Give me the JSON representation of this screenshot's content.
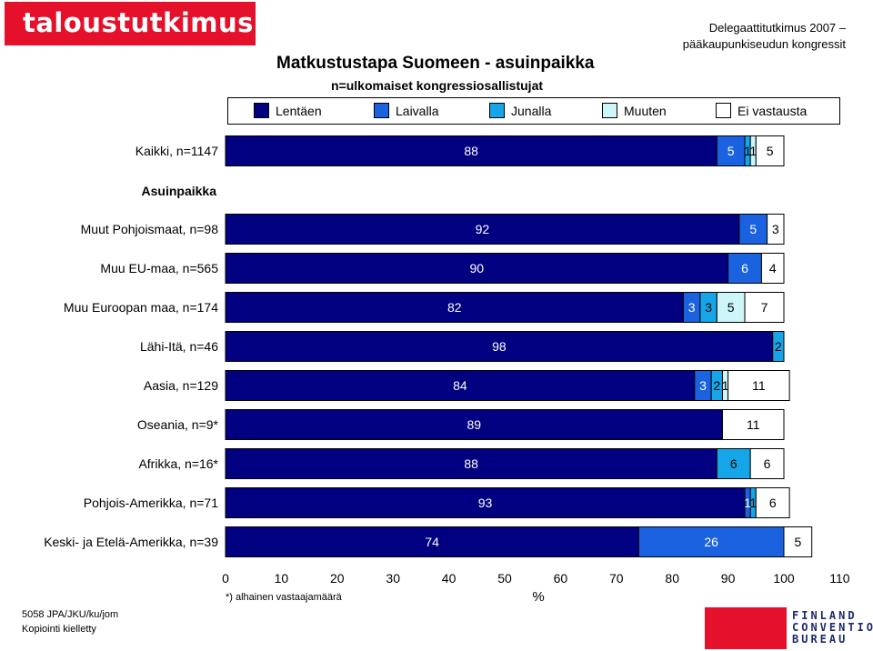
{
  "brand": {
    "logo_text": "taloustutkimus oy"
  },
  "header": {
    "survey_line1": "Delegaattitutkimus 2007 –",
    "survey_line2": "pääkaupunkiseudun kongressit"
  },
  "footer": {
    "code": "5058 JPA/JKU/ku/jom",
    "copyright": "Kopiointi kielletty",
    "badge": "FINLAND CONVENTION BUREAU",
    "badge_lines": [
      "FINLAND",
      "CONVENTION",
      "BUREAU"
    ]
  },
  "colors": [
    "#000080",
    "#1a62e0",
    "#16a6e8",
    "#ccf6f8",
    "#ffffff"
  ],
  "chart_data": {
    "type": "bar",
    "orientation": "horizontal",
    "stacked": true,
    "title": "Matkustustapa Suomeen - asuinpaikka",
    "subtitle": "n=ulkomaiset kongressiosallistujat",
    "xlabel": "%",
    "xlim": [
      0,
      110
    ],
    "xticks": [
      0,
      10,
      20,
      30,
      40,
      50,
      60,
      70,
      80,
      90,
      100,
      110
    ],
    "note": "*) alhainen vastaajamäärä",
    "legend_position": "top",
    "group_label": "Asuinpaikka",
    "series_names": [
      "Lentäen",
      "Laivalla",
      "Junalla",
      "Muuten",
      "Ei vastausta"
    ],
    "rows": [
      {
        "label": "Kaikki, n=1147",
        "values": [
          88,
          5,
          1,
          1,
          5
        ]
      },
      {
        "label": "Muut Pohjoismaat, n=98",
        "values": [
          92,
          5,
          0,
          0,
          3
        ]
      },
      {
        "label": "Muu EU-maa, n=565",
        "values": [
          90,
          6,
          0,
          0,
          4
        ]
      },
      {
        "label": "Muu Euroopan maa, n=174",
        "values": [
          82,
          3,
          3,
          5,
          7
        ]
      },
      {
        "label": "Lähi-Itä, n=46",
        "values": [
          98,
          0,
          2,
          0,
          0
        ]
      },
      {
        "label": "Aasia, n=129",
        "values": [
          84,
          3,
          2,
          1,
          11
        ]
      },
      {
        "label": "Oseania, n=9*",
        "values": [
          89,
          0,
          0,
          0,
          11
        ]
      },
      {
        "label": "Afrikka, n=16*",
        "values": [
          88,
          0,
          6,
          0,
          6
        ]
      },
      {
        "label": "Pohjois-Amerikka, n=71",
        "values": [
          93,
          1,
          1,
          0,
          6
        ]
      },
      {
        "label": "Keski- ja Etelä-Amerikka, n=39",
        "values": [
          74,
          26,
          0,
          0,
          5
        ]
      }
    ]
  }
}
